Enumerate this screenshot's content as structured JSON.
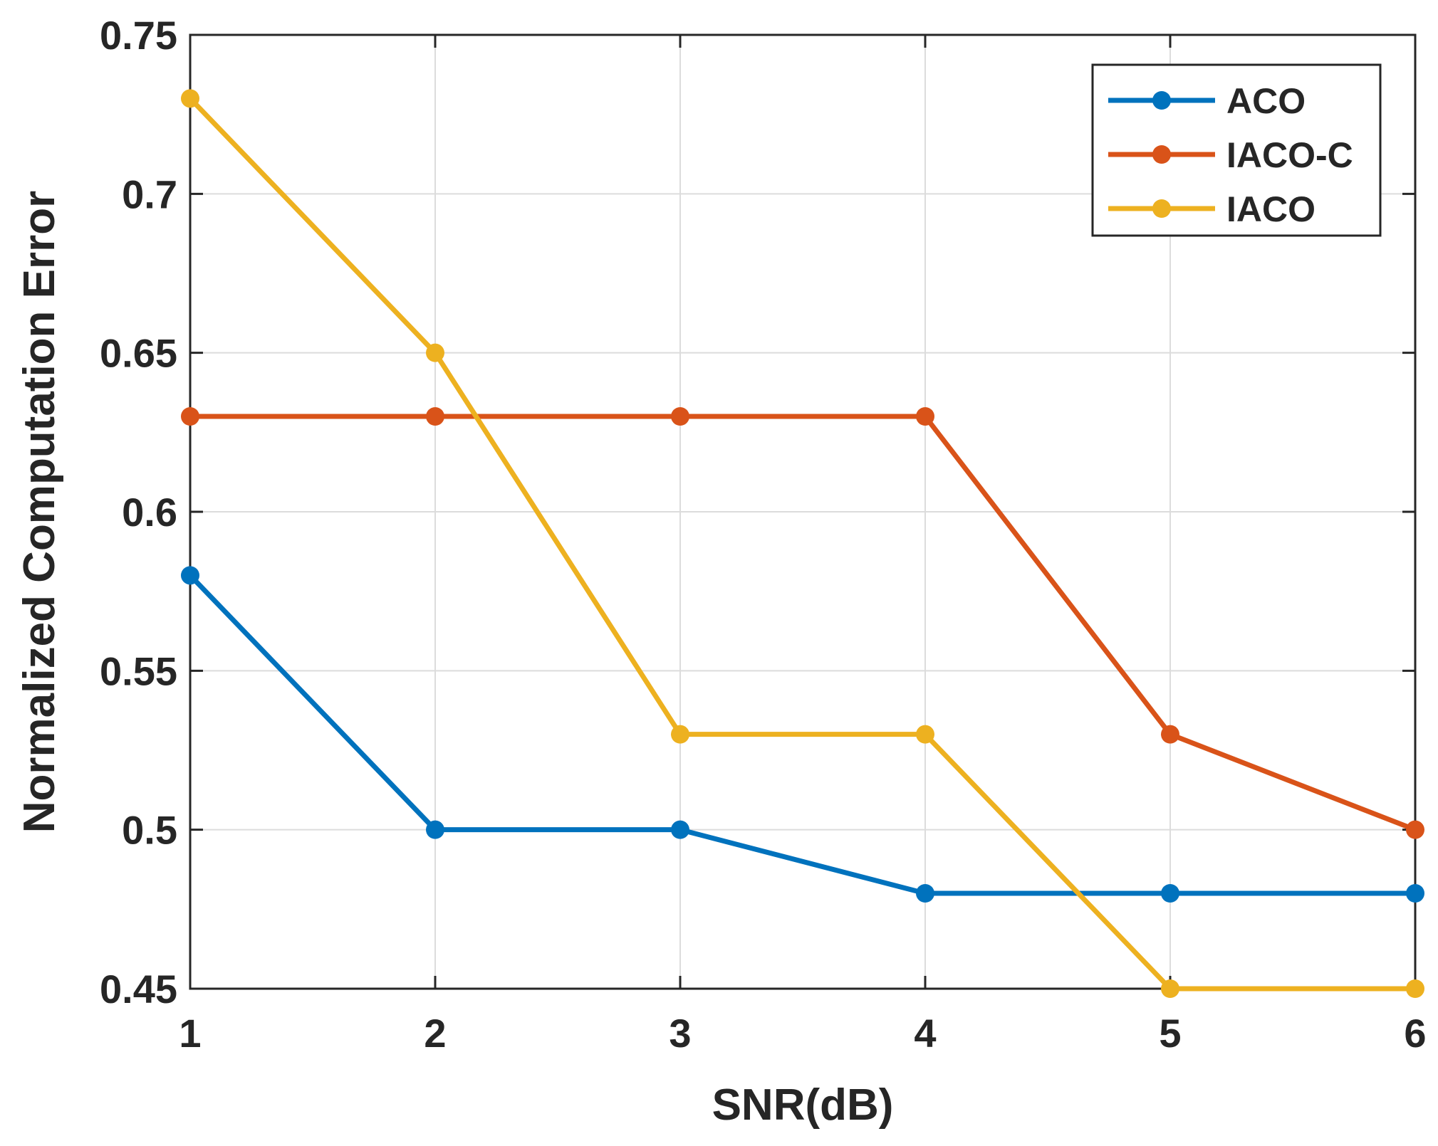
{
  "chart_data": {
    "type": "line",
    "title": "",
    "xlabel": "SNR(dB)",
    "ylabel": "Normalized Computation Error",
    "x": [
      1,
      2,
      3,
      4,
      5,
      6
    ],
    "xlim": [
      1,
      6
    ],
    "ylim": [
      0.45,
      0.75
    ],
    "xticks": [
      "1",
      "2",
      "3",
      "4",
      "5",
      "6"
    ],
    "yticks": [
      "0.45",
      "0.5",
      "0.55",
      "0.6",
      "0.65",
      "0.7",
      "0.75"
    ],
    "grid": true,
    "legend_position": "top-right",
    "series": [
      {
        "name": "ACO",
        "color": "#0072BD",
        "values": [
          0.58,
          0.5,
          0.5,
          0.48,
          0.48,
          0.48
        ]
      },
      {
        "name": "IACO-C",
        "color": "#D95319",
        "values": [
          0.63,
          0.63,
          0.63,
          0.63,
          0.53,
          0.5
        ]
      },
      {
        "name": "IACO",
        "color": "#EDB120",
        "values": [
          0.73,
          0.65,
          0.53,
          0.53,
          0.45,
          0.45
        ]
      }
    ]
  }
}
